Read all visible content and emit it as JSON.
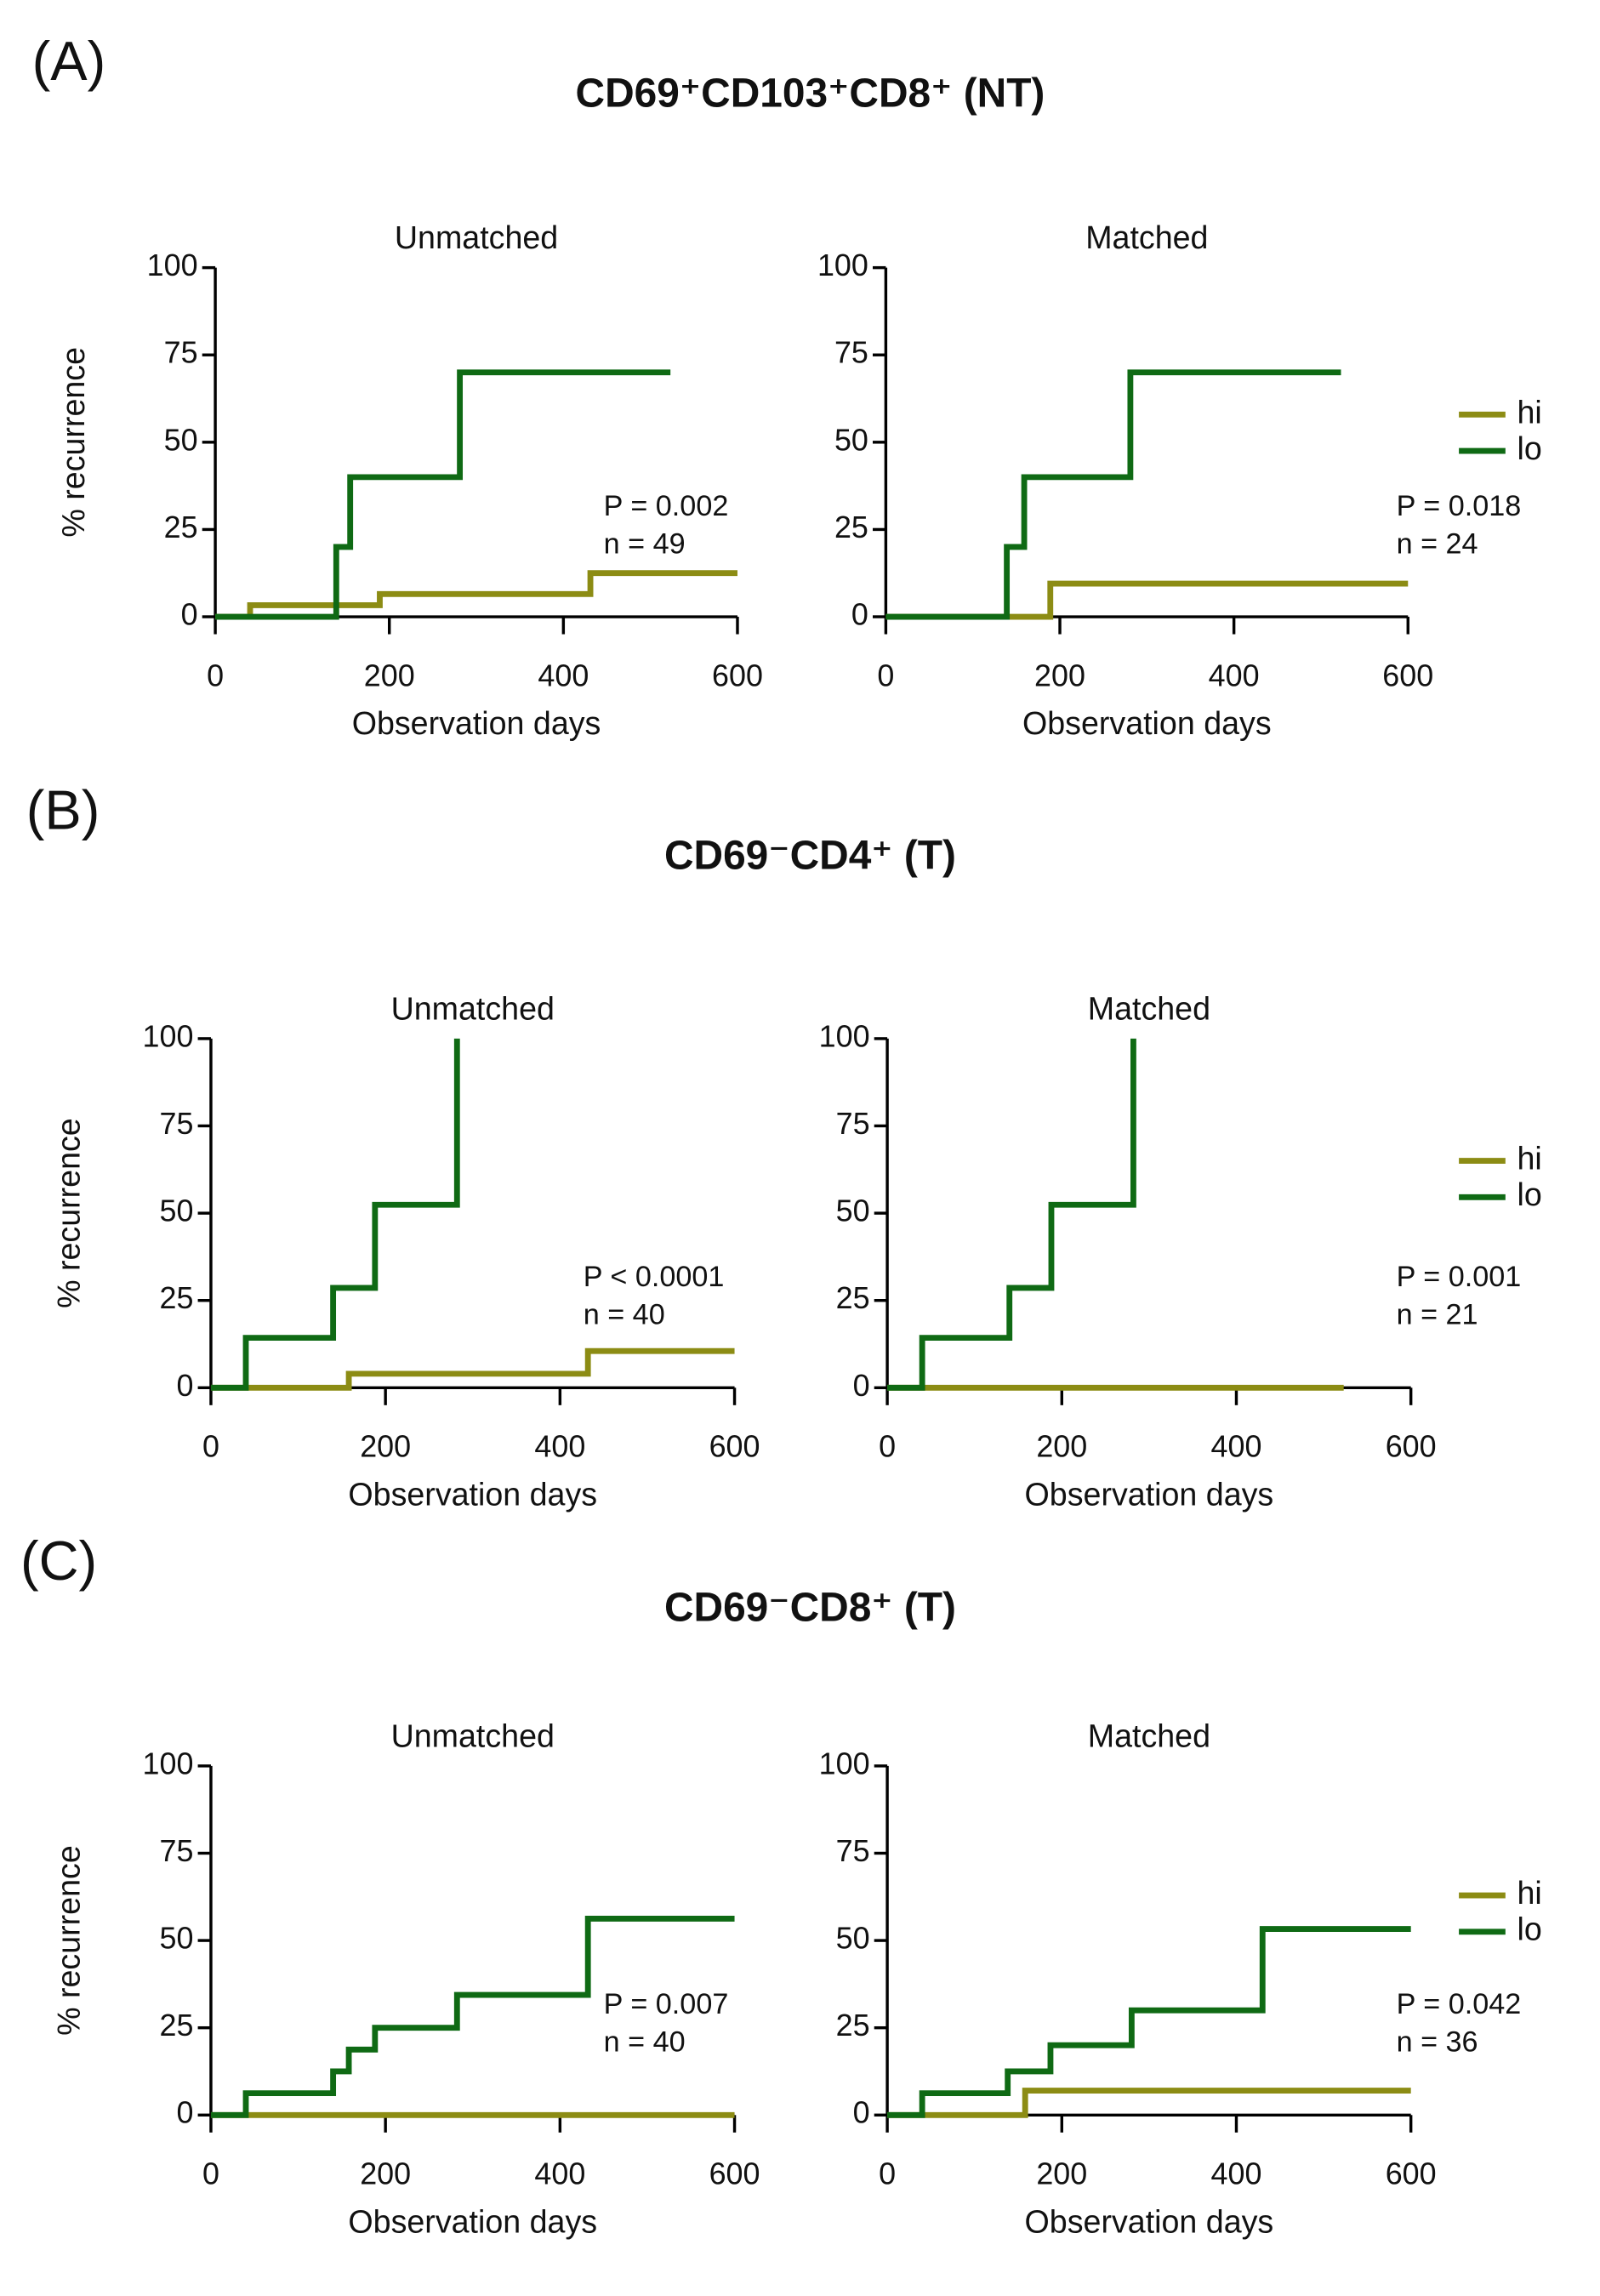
{
  "panels": [
    {
      "label": "(A)",
      "title": "CD69⁺CD103⁺CD8⁺ (NT)"
    },
    {
      "label": "(B)",
      "title": "CD69⁻CD4⁺ (T)"
    },
    {
      "label": "(C)",
      "title": "CD69⁻CD8⁺ (T)"
    }
  ],
  "chart_data": [
    {
      "type": "line",
      "step": "post",
      "title": "Unmatched",
      "xlabel": "Observation days",
      "ylabel": "% recurrence",
      "xlim": [
        0,
        600
      ],
      "xticks": [
        0,
        200,
        400,
        600
      ],
      "ylim": [
        0,
        100
      ],
      "yticks": [
        0,
        25,
        50,
        75,
        100
      ],
      "legend": false,
      "annotations": [
        "P = 0.002",
        "n = 49"
      ],
      "series": [
        {
          "name": "hi",
          "color": "#8c8c14",
          "x": [
            0,
            40,
            189,
            431,
            600
          ],
          "values": [
            0,
            3.3,
            6.5,
            12.5,
            12.5
          ]
        },
        {
          "name": "lo",
          "color": "#0f6a14",
          "x": [
            0,
            139,
            155,
            281,
            523
          ],
          "values": [
            0,
            20,
            40,
            70,
            70
          ]
        }
      ]
    },
    {
      "type": "line",
      "step": "post",
      "title": "Matched",
      "xlabel": "Observation days",
      "xlim": [
        0,
        600
      ],
      "xticks": [
        0,
        200,
        400,
        600
      ],
      "ylim": [
        0,
        100
      ],
      "yticks": [
        0,
        25,
        50,
        75,
        100
      ],
      "legend": true,
      "annotations": [
        "P = 0.018",
        "n = 24"
      ],
      "series": [
        {
          "name": "hi",
          "color": "#8c8c14",
          "x": [
            0,
            189,
            600
          ],
          "values": [
            0,
            9.5,
            9.5
          ]
        },
        {
          "name": "lo",
          "color": "#0f6a14",
          "x": [
            0,
            139,
            159,
            281,
            523
          ],
          "values": [
            0,
            20,
            40,
            70,
            70
          ]
        }
      ]
    },
    {
      "type": "line",
      "step": "post",
      "title": "Unmatched",
      "xlabel": "Observation days",
      "ylabel": "% recurrence",
      "xlim": [
        0,
        600
      ],
      "xticks": [
        0,
        200,
        400,
        600
      ],
      "ylim": [
        0,
        100
      ],
      "yticks": [
        0,
        25,
        50,
        75,
        100
      ],
      "legend": false,
      "annotations": [
        "P < 0.0001",
        "n = 40"
      ],
      "series": [
        {
          "name": "hi",
          "color": "#8c8c14",
          "x": [
            0,
            158,
            432,
            600
          ],
          "values": [
            0,
            4,
            10.5,
            10.5
          ]
        },
        {
          "name": "lo",
          "color": "#0f6a14",
          "x": [
            0,
            40,
            140,
            188,
            282
          ],
          "values": [
            0,
            14.3,
            28.6,
            52.4,
            100
          ]
        }
      ]
    },
    {
      "type": "line",
      "step": "post",
      "title": "Matched",
      "xlabel": "Observation days",
      "xlim": [
        0,
        600
      ],
      "xticks": [
        0,
        200,
        400,
        600
      ],
      "ylim": [
        0,
        100
      ],
      "yticks": [
        0,
        25,
        50,
        75,
        100
      ],
      "legend": true,
      "annotations": [
        "P = 0.001",
        "n = 21"
      ],
      "series": [
        {
          "name": "hi",
          "color": "#8c8c14",
          "x": [
            0,
            523
          ],
          "values": [
            0,
            0
          ]
        },
        {
          "name": "lo",
          "color": "#0f6a14",
          "x": [
            0,
            40,
            140,
            188,
            282
          ],
          "values": [
            0,
            14.3,
            28.6,
            52.4,
            100
          ]
        }
      ]
    },
    {
      "type": "line",
      "step": "post",
      "title": "Unmatched",
      "xlabel": "Observation days",
      "ylabel": "% recurrence",
      "xlim": [
        0,
        600
      ],
      "xticks": [
        0,
        200,
        400,
        600
      ],
      "ylim": [
        0,
        100
      ],
      "yticks": [
        0,
        25,
        50,
        75,
        100
      ],
      "legend": false,
      "annotations": [
        "P = 0.007",
        "n = 40"
      ],
      "series": [
        {
          "name": "hi",
          "color": "#8c8c14",
          "x": [
            0,
            600
          ],
          "values": [
            0,
            0
          ]
        },
        {
          "name": "lo",
          "color": "#0f6a14",
          "x": [
            0,
            40,
            140,
            158,
            188,
            282,
            432,
            600
          ],
          "values": [
            0,
            6.25,
            12.5,
            18.75,
            25,
            34.4,
            56.25,
            56.25
          ]
        }
      ]
    },
    {
      "type": "line",
      "step": "post",
      "title": "Matched",
      "xlabel": "Observation days",
      "xlim": [
        0,
        600
      ],
      "xticks": [
        0,
        200,
        400,
        600
      ],
      "ylim": [
        0,
        100
      ],
      "yticks": [
        0,
        25,
        50,
        75,
        100
      ],
      "legend": true,
      "annotations": [
        "P = 0.042",
        "n = 36"
      ],
      "series": [
        {
          "name": "hi",
          "color": "#8c8c14",
          "x": [
            0,
            158,
            600
          ],
          "values": [
            0,
            7,
            7
          ]
        },
        {
          "name": "lo",
          "color": "#0f6a14",
          "x": [
            0,
            40,
            138,
            187,
            280,
            430,
            600
          ],
          "values": [
            0,
            6.25,
            12.5,
            20,
            30,
            53.3,
            53.3
          ]
        }
      ]
    }
  ]
}
